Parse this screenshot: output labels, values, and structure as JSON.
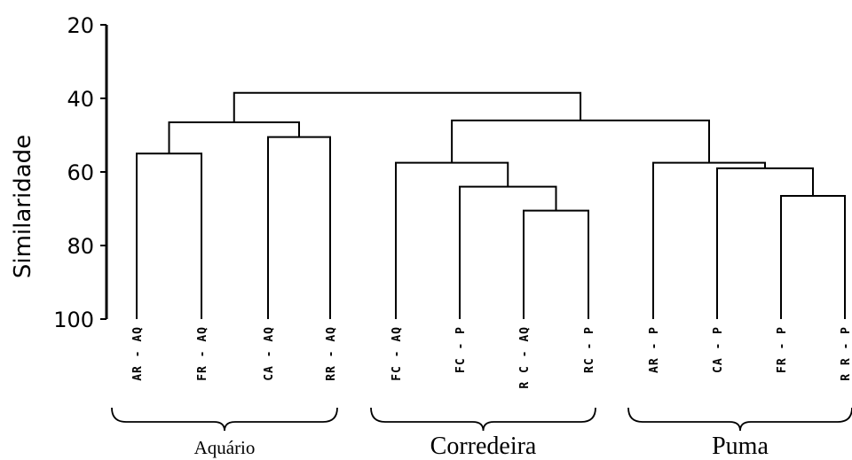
{
  "chart_data": {
    "type": "dendrogram",
    "title": "",
    "xlabel": "",
    "ylabel": "Similaridade",
    "ylim": [
      20,
      100
    ],
    "yticks": [
      "20",
      "40",
      "60",
      "80",
      "100"
    ],
    "leaves": [
      "AR - AQ",
      "FR - AQ",
      "CA - AQ",
      "RR - AQ",
      "FC - AQ",
      "FC - P",
      "R C - AQ",
      "RC - P",
      "AR - P",
      "CA - P",
      "FR - P",
      "R R - P"
    ],
    "merges": [
      {
        "id": "m1",
        "a": "L0",
        "b": "L1",
        "similarity": 55
      },
      {
        "id": "m2",
        "a": "L2",
        "b": "L3",
        "similarity": 50.5
      },
      {
        "id": "m3",
        "a": "m1",
        "b": "m2",
        "similarity": 46.5
      },
      {
        "id": "m4",
        "a": "L6",
        "b": "L7",
        "similarity": 70.5
      },
      {
        "id": "m5",
        "a": "L5",
        "b": "m4",
        "similarity": 64
      },
      {
        "id": "m6",
        "a": "L4",
        "b": "m5",
        "similarity": 57.5
      },
      {
        "id": "m7",
        "a": "L10",
        "b": "L11",
        "similarity": 66.5
      },
      {
        "id": "m8",
        "a": "L9",
        "b": "m7",
        "similarity": 59
      },
      {
        "id": "m9",
        "a": "L8",
        "b": "m8",
        "similarity": 57.5
      },
      {
        "id": "m10",
        "a": "m6",
        "b": "m9",
        "similarity": 46
      },
      {
        "id": "m11",
        "a": "m3",
        "b": "m10",
        "similarity": 38.5
      }
    ],
    "groups": [
      {
        "label": "Aquário",
        "from": 0,
        "to": 3
      },
      {
        "label": "Corredeira",
        "from": 4,
        "to": 7
      },
      {
        "label": "Puma",
        "from": 8,
        "to": 11
      }
    ]
  }
}
